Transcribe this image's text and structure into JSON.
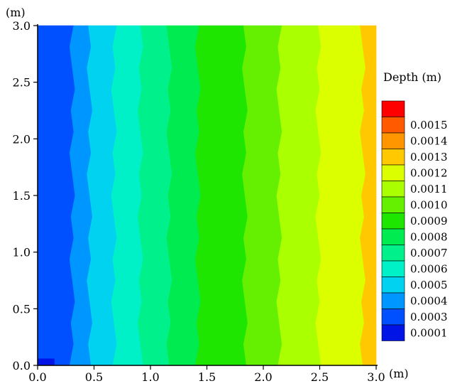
{
  "chart_data": {
    "type": "contour",
    "x_unit_label": "(m)",
    "y_unit_label": "(m)",
    "x_ticks": [
      "0.0",
      "0.5",
      "1.0",
      "1.5",
      "2.0",
      "2.5",
      "3.0"
    ],
    "y_ticks": [
      "0.0",
      "0.5",
      "1.0",
      "1.5",
      "2.0",
      "2.5",
      "3.0"
    ],
    "xlim": [
      0,
      3
    ],
    "ylim": [
      0,
      3
    ],
    "colorbar": {
      "title": "Depth (m)",
      "levels": [
        {
          "label": "",
          "color": "#ff0000"
        },
        {
          "label": "0.0015",
          "color": "#ff5a00"
        },
        {
          "label": "0.0014",
          "color": "#ff9600"
        },
        {
          "label": "0.0013",
          "color": "#ffc800"
        },
        {
          "label": "0.0012",
          "color": "#dcff00"
        },
        {
          "label": "0.0011",
          "color": "#aaff00"
        },
        {
          "label": "0.0010",
          "color": "#64f000"
        },
        {
          "label": "0.0009",
          "color": "#1ee600"
        },
        {
          "label": "0.0008",
          "color": "#00eb50"
        },
        {
          "label": "0.0007",
          "color": "#00f08c"
        },
        {
          "label": "0.0006",
          "color": "#00f0c8"
        },
        {
          "label": "0.0005",
          "color": "#00d2f0"
        },
        {
          "label": "0.0004",
          "color": "#0096ff"
        },
        {
          "label": "0.0003",
          "color": "#0050ff"
        },
        {
          "label": "0.0001",
          "color": "#0014e6"
        }
      ]
    },
    "bands": [
      {
        "x_start": 0.0,
        "x_end": 0.3,
        "color": "#0050ff"
      },
      {
        "x_start": 0.3,
        "x_end": 0.47,
        "color": "#0096ff"
      },
      {
        "x_start": 0.47,
        "x_end": 0.67,
        "color": "#00d2f0"
      },
      {
        "x_start": 0.67,
        "x_end": 0.92,
        "color": "#00f0c8"
      },
      {
        "x_start": 0.92,
        "x_end": 1.16,
        "color": "#00f08c"
      },
      {
        "x_start": 1.16,
        "x_end": 1.43,
        "color": "#00eb50"
      },
      {
        "x_start": 1.43,
        "x_end": 1.83,
        "color": "#1ee600"
      },
      {
        "x_start": 1.83,
        "x_end": 2.15,
        "color": "#64f000"
      },
      {
        "x_start": 2.15,
        "x_end": 2.48,
        "color": "#aaff00"
      },
      {
        "x_start": 2.48,
        "x_end": 2.89,
        "color": "#dcff00"
      },
      {
        "x_start": 2.89,
        "x_end": 3.0,
        "color": "#ffc800"
      }
    ],
    "corner_patch": {
      "x_end": 0.15,
      "y_end": 0.06,
      "color": "#0014e6"
    }
  }
}
